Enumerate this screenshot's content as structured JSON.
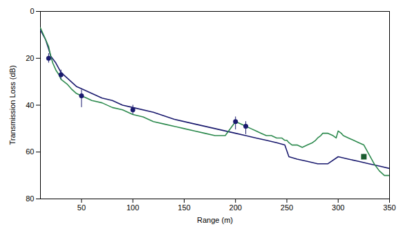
{
  "chart_data": {
    "type": "line",
    "xlabel": "Range (m)",
    "ylabel": "Transmission Loss (dB)",
    "xlim": [
      10,
      350
    ],
    "ylim": [
      80,
      0
    ],
    "xticks": [
      50,
      100,
      150,
      200,
      250,
      300,
      350
    ],
    "yticks": [
      0,
      20,
      40,
      60,
      80
    ],
    "grid": false,
    "series": [
      {
        "type": "line",
        "color": "#1a1a6e",
        "x": [
          10,
          15,
          18,
          20,
          25,
          30,
          35,
          40,
          45,
          50,
          60,
          70,
          80,
          90,
          100,
          120,
          140,
          160,
          180,
          200,
          210,
          220,
          230,
          240,
          248,
          252,
          260,
          270,
          280,
          290,
          300,
          310,
          320,
          330,
          340,
          350
        ],
        "values": [
          8,
          12,
          16,
          19,
          22,
          26,
          28,
          30,
          32,
          33,
          35,
          37,
          38,
          40,
          41,
          43,
          46,
          48,
          50,
          52,
          53,
          54,
          55,
          56,
          57,
          62,
          63,
          64,
          65,
          65,
          62,
          63,
          64,
          65,
          66,
          67
        ]
      },
      {
        "type": "line",
        "color": "#2d8a4e",
        "x": [
          10,
          12,
          14,
          16,
          18,
          20,
          22,
          25,
          28,
          30,
          33,
          36,
          40,
          45,
          50,
          55,
          60,
          70,
          80,
          90,
          100,
          110,
          120,
          130,
          140,
          150,
          160,
          170,
          180,
          190,
          200,
          205,
          210,
          215,
          220,
          225,
          230,
          235,
          240,
          245,
          248,
          250,
          252,
          255,
          260,
          265,
          270,
          275,
          278,
          280,
          283,
          285,
          290,
          295,
          298,
          300,
          303,
          305,
          310,
          315,
          320,
          325,
          330,
          335,
          340,
          345,
          350
        ],
        "values": [
          7,
          9,
          11,
          13,
          15,
          19,
          22,
          25,
          27,
          29,
          30,
          31,
          33,
          35,
          36,
          37,
          38,
          39,
          41,
          42,
          44,
          45,
          47,
          48,
          49,
          50,
          51,
          52,
          53,
          53,
          47,
          48,
          49,
          50,
          51,
          52,
          53,
          53,
          54,
          54,
          55,
          55,
          56,
          57,
          57,
          58,
          57,
          56,
          55,
          54,
          53,
          52,
          52,
          53,
          54,
          51,
          52,
          53,
          54,
          55,
          56,
          57,
          61,
          65,
          68,
          70,
          70
        ]
      },
      {
        "type": "scatter",
        "marker": "circle",
        "color": "#1a1a6e",
        "x": [
          18,
          30,
          50,
          100,
          200,
          210,
          325
        ],
        "values": [
          20,
          27,
          36,
          42,
          47,
          49,
          62
        ],
        "yerr_low": [
          2,
          2,
          2.5,
          2,
          2,
          2,
          1
        ],
        "yerr_high": [
          2,
          2,
          5,
          2,
          3.5,
          3.5,
          1
        ]
      },
      {
        "type": "scatter",
        "marker": "square",
        "color": "#1a5c2e",
        "x": [
          325
        ],
        "values": [
          62
        ]
      }
    ]
  }
}
